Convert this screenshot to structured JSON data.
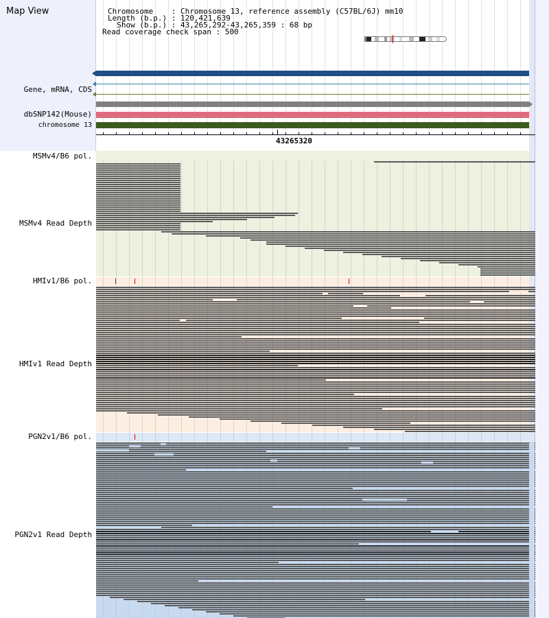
{
  "header": {
    "title": "Map View",
    "info_lines": [
      "Chromosome    : Chromosome 13, reference assembly (C57BL/6J) mm10",
      "Length (b.p.) : 120,421,639",
      "  Show (b.p.) : 43,265,292-43,265,359 : 68 bp",
      "Read coverage check span : 500"
    ]
  },
  "tracks": {
    "gene": "Gene, mRNA, CDS",
    "snp": "dbSNP142(Mouse)",
    "chrom": "chromosome 13"
  },
  "position_label": "43265320",
  "panels": [
    {
      "pol_label": "MSMv4/B6 pol.",
      "depth_label": "MSMv4 Read Depth",
      "bg": "#eef0e0",
      "pol_bg": "#eef0e0"
    },
    {
      "pol_label": "HMIv1/B6 pol.",
      "depth_label": "HMIv1 Read Depth",
      "bg": "#fdeee2",
      "pol_bg": "#fdeee2"
    },
    {
      "pol_label": "PGN2v1/B6 pol.",
      "depth_label": "PGN2v1 Read Depth",
      "bg": "#c8daf0",
      "pol_bg": "#dde8f6"
    }
  ],
  "colors": {
    "gene_bar": "#1f4e86",
    "snp_bar": "#e06a7e",
    "chrom_bar": "#3c5a1e",
    "gray_bar": "#808080",
    "read": "#5a5a5a",
    "read_dark": "#222222",
    "snv_mark": "#cc0000"
  }
}
